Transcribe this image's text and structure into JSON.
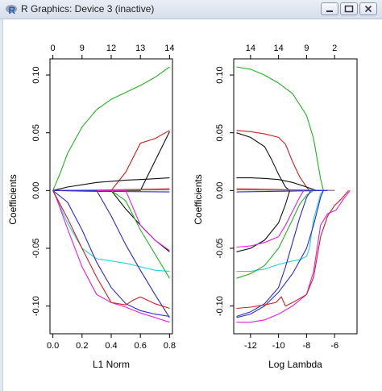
{
  "window": {
    "title": "R Graphics: Device 3 (inactive)",
    "buttons": [
      "minimize",
      "maximize",
      "close"
    ]
  },
  "icons": {
    "app": "r-logo-icon",
    "minimize": "minimize-icon",
    "maximize": "maximize-icon",
    "close": "close-icon"
  },
  "colors": {
    "titlebar": "#dfe6f0",
    "green": "#22b222",
    "red": "#cc2020",
    "black": "#111111",
    "blue": "#2a2ad0",
    "cyan": "#22d0e0",
    "magenta": "#e020e0",
    "gray": "#888888"
  },
  "chart_data": [
    {
      "type": "line",
      "xlabel": "L1 Norm",
      "ylabel": "Coefficients",
      "xlim": [
        -0.02,
        0.82
      ],
      "ylim": [
        -0.124,
        0.114
      ],
      "x_ticks": [
        "0.0",
        "0.2",
        "0.4",
        "0.6",
        "0.8"
      ],
      "x_tick_values": [
        0.0,
        0.2,
        0.4,
        0.6,
        0.8
      ],
      "y_ticks": [
        "-0.10",
        "-0.05",
        "0.00",
        "0.05",
        "0.10"
      ],
      "y_tick_values": [
        -0.1,
        -0.05,
        0.0,
        0.05,
        0.1
      ],
      "top_ticks": [
        "0",
        "9",
        "12",
        "13",
        "14"
      ],
      "top_tick_values": [
        0.0,
        0.2,
        0.4,
        0.6,
        0.8
      ],
      "series": [
        {
          "color": "green",
          "x": [
            0,
            0.05,
            0.1,
            0.2,
            0.3,
            0.4,
            0.5,
            0.6,
            0.7,
            0.8
          ],
          "y": [
            0,
            0.015,
            0.032,
            0.055,
            0.07,
            0.079,
            0.085,
            0.091,
            0.098,
            0.107
          ]
        },
        {
          "color": "red",
          "x": [
            0,
            0.4,
            0.5,
            0.6,
            0.7,
            0.8
          ],
          "y": [
            0,
            0.0,
            0.016,
            0.041,
            0.045,
            0.052
          ]
        },
        {
          "color": "black",
          "x": [
            0,
            0.6,
            0.8
          ],
          "y": [
            0,
            0.0,
            0.051
          ]
        },
        {
          "color": "black",
          "x": [
            0,
            0.1,
            0.2,
            0.3,
            0.4,
            0.5,
            0.6,
            0.7,
            0.8
          ],
          "y": [
            0,
            0.003,
            0.005,
            0.007,
            0.008,
            0.009,
            0.0095,
            0.0102,
            0.011
          ]
        },
        {
          "color": "red",
          "x": [
            0,
            0.3,
            0.5,
            0.6,
            0.8
          ],
          "y": [
            0,
            0.0004,
            0.0008,
            0.001,
            0.0015
          ]
        },
        {
          "color": "gray",
          "x": [
            0,
            0.8
          ],
          "y": [
            0,
            0.0005
          ]
        },
        {
          "color": "blue",
          "x": [
            0,
            0.2,
            0.4,
            0.8
          ],
          "y": [
            0,
            -0.0005,
            -0.0008,
            -0.0012
          ]
        },
        {
          "color": "cyan",
          "x": [
            0,
            0.01,
            0.1,
            0.2,
            0.3,
            0.4,
            0.5,
            0.6,
            0.7,
            0.8
          ],
          "y": [
            0,
            -0.003,
            -0.028,
            -0.05,
            -0.059,
            -0.061,
            -0.063,
            -0.066,
            -0.069,
            -0.07
          ]
        },
        {
          "color": "black",
          "x": [
            0,
            0.4,
            0.5,
            0.6,
            0.7,
            0.8
          ],
          "y": [
            0,
            0.0,
            -0.016,
            -0.03,
            -0.043,
            -0.053
          ]
        },
        {
          "color": "green",
          "x": [
            0,
            0.4,
            0.5,
            0.6,
            0.7,
            0.8
          ],
          "y": [
            0,
            0.0,
            -0.009,
            -0.034,
            -0.055,
            -0.076
          ]
        },
        {
          "color": "magenta",
          "x": [
            0,
            0.5,
            0.6,
            0.7,
            0.8
          ],
          "y": [
            0,
            0.0,
            -0.03,
            -0.043,
            -0.052
          ]
        },
        {
          "color": "magenta",
          "x": [
            0,
            0.02,
            0.1,
            0.2,
            0.3,
            0.4,
            0.5,
            0.6,
            0.7,
            0.8
          ],
          "y": [
            0,
            -0.005,
            -0.033,
            -0.066,
            -0.09,
            -0.097,
            -0.101,
            -0.106,
            -0.11,
            -0.114
          ]
        },
        {
          "color": "blue",
          "x": [
            0,
            0.1,
            0.2,
            0.3,
            0.4,
            0.5,
            0.6,
            0.7,
            0.8
          ],
          "y": [
            0,
            -0.01,
            -0.034,
            -0.062,
            -0.084,
            -0.098,
            -0.104,
            -0.107,
            -0.109
          ]
        },
        {
          "color": "blue",
          "x": [
            0,
            0.3,
            0.4,
            0.5,
            0.6,
            0.7,
            0.8
          ],
          "y": [
            0,
            0.0,
            -0.022,
            -0.047,
            -0.069,
            -0.09,
            -0.11
          ]
        },
        {
          "color": "red",
          "x": [
            0,
            0.1,
            0.2,
            0.3,
            0.4,
            0.5,
            0.55,
            0.6,
            0.7,
            0.8
          ],
          "y": [
            0,
            -0.024,
            -0.05,
            -0.075,
            -0.097,
            -0.099,
            -0.095,
            -0.092,
            -0.098,
            -0.102
          ]
        }
      ]
    },
    {
      "type": "line",
      "xlabel": "Log Lambda",
      "ylabel": "Coefficients",
      "xlim": [
        -13.2,
        -4.4
      ],
      "ylim": [
        -0.124,
        0.114
      ],
      "x_ticks": [
        "-12",
        "-10",
        "-8",
        "-6"
      ],
      "x_tick_values": [
        -12,
        -10,
        -8,
        -6
      ],
      "y_ticks": [
        "-0.10",
        "-0.05",
        "0.00",
        "0.05",
        "0.10"
      ],
      "y_tick_values": [
        -0.1,
        -0.05,
        0.0,
        0.05,
        0.1
      ],
      "top_ticks": [
        "14",
        "14",
        "9",
        "2"
      ],
      "top_tick_values": [
        -12,
        -10,
        -8,
        -6
      ],
      "series": [
        {
          "color": "green",
          "x": [
            -13,
            -12,
            -11,
            -10,
            -9,
            -8,
            -7.5,
            -7,
            -6.8
          ],
          "y": [
            0.107,
            0.105,
            0.1,
            0.093,
            0.084,
            0.065,
            0.045,
            0.01,
            0.0
          ]
        },
        {
          "color": "red",
          "x": [
            -13,
            -12,
            -11,
            -10,
            -9.5,
            -9,
            -8.5,
            -8,
            -7.8
          ],
          "y": [
            0.052,
            0.051,
            0.049,
            0.046,
            0.04,
            0.025,
            0.012,
            0.003,
            0.0
          ]
        },
        {
          "color": "black",
          "x": [
            -13,
            -12,
            -11,
            -10.5,
            -10,
            -9.5,
            -9.2
          ],
          "y": [
            0.05,
            0.046,
            0.038,
            0.027,
            0.014,
            0.003,
            0.0
          ]
        },
        {
          "color": "black",
          "x": [
            -13,
            -12,
            -11,
            -10,
            -9,
            -8,
            -7.3
          ],
          "y": [
            0.011,
            0.011,
            0.0105,
            0.0095,
            0.007,
            0.003,
            0.0
          ]
        },
        {
          "color": "red",
          "x": [
            -13,
            -6
          ],
          "y": [
            0.0015,
            0.0
          ]
        },
        {
          "color": "gray",
          "x": [
            -13,
            -6
          ],
          "y": [
            0.0005,
            0.0
          ]
        },
        {
          "color": "blue",
          "x": [
            -13,
            -6.5
          ],
          "y": [
            -0.0012,
            0.0
          ]
        },
        {
          "color": "cyan",
          "x": [
            -13,
            -12,
            -11,
            -10,
            -9,
            -8.5,
            -8,
            -7.8,
            -7.5,
            -7,
            -6.8
          ],
          "y": [
            -0.07,
            -0.07,
            -0.068,
            -0.064,
            -0.061,
            -0.06,
            -0.057,
            -0.05,
            -0.025,
            -0.003,
            0.0
          ]
        },
        {
          "color": "black",
          "x": [
            -13,
            -12,
            -11,
            -10,
            -9.5,
            -9.2
          ],
          "y": [
            -0.053,
            -0.05,
            -0.043,
            -0.028,
            -0.012,
            0.0
          ]
        },
        {
          "color": "green",
          "x": [
            -13,
            -12,
            -11,
            -10,
            -9,
            -8.5,
            -8,
            -7.5
          ],
          "y": [
            -0.076,
            -0.072,
            -0.065,
            -0.05,
            -0.025,
            -0.012,
            -0.004,
            0.0
          ]
        },
        {
          "color": "magenta",
          "x": [
            -13,
            -12,
            -11,
            -10,
            -9.5,
            -9,
            -8.5,
            -8.2
          ],
          "y": [
            -0.049,
            -0.048,
            -0.045,
            -0.04,
            -0.03,
            -0.018,
            -0.006,
            0.0
          ]
        },
        {
          "color": "magenta",
          "x": [
            -13,
            -12,
            -11,
            -10,
            -9,
            -8,
            -7.5,
            -7,
            -6.5,
            -5.9,
            -5.4,
            -4.9
          ],
          "y": [
            -0.114,
            -0.114,
            -0.112,
            -0.107,
            -0.1,
            -0.09,
            -0.07,
            -0.03,
            -0.02,
            -0.017,
            -0.008,
            0.0
          ]
        },
        {
          "color": "blue",
          "x": [
            -13,
            -12,
            -11,
            -10,
            -9.5,
            -9,
            -8.5,
            -8,
            -7.7
          ],
          "y": [
            -0.109,
            -0.105,
            -0.098,
            -0.084,
            -0.066,
            -0.045,
            -0.024,
            -0.006,
            0.0
          ]
        },
        {
          "color": "blue",
          "x": [
            -13,
            -12,
            -11,
            -10,
            -9,
            -8,
            -7.5,
            -7,
            -6.8
          ],
          "y": [
            -0.11,
            -0.107,
            -0.1,
            -0.088,
            -0.072,
            -0.05,
            -0.03,
            -0.006,
            0.0
          ]
        },
        {
          "color": "red",
          "x": [
            -13,
            -12,
            -11,
            -10.2,
            -9.8,
            -9.5,
            -9,
            -8,
            -7.5,
            -7,
            -6.5,
            -6,
            -5.5,
            -5
          ],
          "y": [
            -0.102,
            -0.101,
            -0.099,
            -0.097,
            -0.092,
            -0.1,
            -0.097,
            -0.09,
            -0.075,
            -0.04,
            -0.022,
            -0.013,
            -0.007,
            0.0
          ]
        }
      ]
    }
  ]
}
